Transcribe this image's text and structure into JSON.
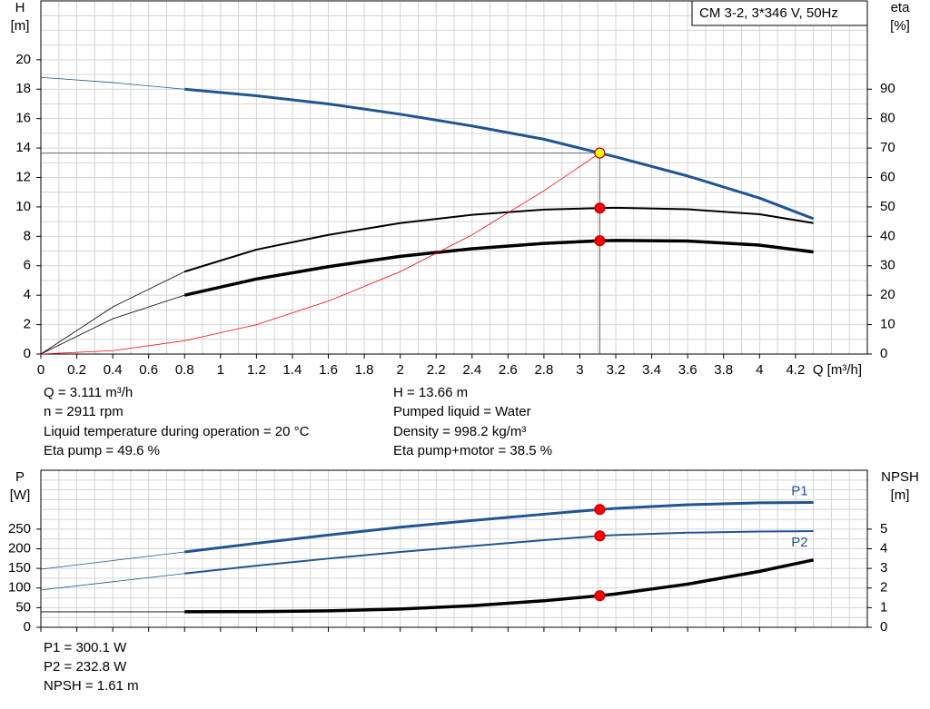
{
  "chart_data": [
    {
      "type": "line",
      "ylabel": "H",
      "yunit": "[m]",
      "y2label": "eta",
      "y2unit": "[%]",
      "xlabel": "Q [m³/h]",
      "legend_text": "CM 3-2, 3*346 V, 50Hz",
      "xlim": [
        0,
        4.6
      ],
      "xticks": [
        0,
        0.2,
        0.4,
        0.6,
        0.8,
        1.0,
        1.2,
        1.4,
        1.6,
        1.8,
        2.0,
        2.2,
        2.4,
        2.6,
        2.8,
        3.0,
        3.2,
        3.4,
        3.6,
        3.8,
        4.0,
        4.2
      ],
      "ylim": [
        0,
        24
      ],
      "yticks": [
        0,
        2,
        4,
        6,
        8,
        10,
        12,
        14,
        16,
        18,
        20
      ],
      "y2lim": [
        0,
        120
      ],
      "y2ticks": [
        0,
        10,
        20,
        30,
        40,
        50,
        60,
        70,
        80,
        90
      ],
      "minor_grid": {
        "x": 0.1,
        "y": 1
      },
      "thin_below": 0.8,
      "series": [
        {
          "color": "#1f5592",
          "width": 3,
          "x": [
            0,
            0.4,
            0.8,
            1.2,
            1.6,
            2.0,
            2.4,
            2.8,
            3.111,
            3.2,
            3.6,
            4.0,
            4.3
          ],
          "values": [
            18.8,
            18.45,
            18.0,
            17.55,
            17.0,
            16.3,
            15.5,
            14.6,
            13.66,
            13.4,
            12.1,
            10.6,
            9.2
          ]
        },
        {
          "color": "#000000",
          "width": 2,
          "axis": "y2",
          "x": [
            0,
            0.4,
            0.8,
            1.2,
            1.6,
            2.0,
            2.4,
            2.8,
            3.111,
            3.2,
            3.6,
            4.0,
            4.3
          ],
          "values": [
            0,
            16,
            28,
            35.5,
            40.5,
            44.5,
            47.3,
            49.1,
            49.6,
            49.7,
            49.2,
            47.5,
            44.5
          ]
        },
        {
          "color": "#000000",
          "width": 3.5,
          "axis": "y2",
          "x": [
            0,
            0.4,
            0.8,
            1.2,
            1.6,
            2.0,
            2.4,
            2.8,
            3.111,
            3.2,
            3.6,
            4.0,
            4.3
          ],
          "values": [
            0,
            12,
            20,
            25.5,
            29.7,
            33.2,
            35.8,
            37.6,
            38.5,
            38.6,
            38.4,
            37,
            34.7
          ]
        },
        {
          "color": "#ff0000",
          "width": 0.8,
          "thin": true,
          "x": [
            0,
            0.4,
            0.8,
            1.2,
            1.6,
            2.0,
            2.4,
            2.8,
            3.111
          ],
          "values": [
            0,
            0.23,
            0.9,
            2.0,
            3.6,
            5.6,
            8.1,
            11.1,
            13.66
          ]
        }
      ],
      "markers": [
        {
          "x": 3.111,
          "y": 13.66,
          "color": "#ffff00",
          "crosshair": true
        },
        {
          "x": 3.111,
          "y": 49.6,
          "axis": "y2",
          "color": "#ff0000"
        },
        {
          "x": 3.111,
          "y": 38.5,
          "axis": "y2",
          "color": "#ff0000"
        }
      ]
    },
    {
      "type": "line",
      "ylabel": "P",
      "yunit": "[W]",
      "y2label": "NPSH",
      "y2unit": "[m]",
      "xlim": [
        0,
        4.6
      ],
      "xticks": [
        0,
        0.2,
        0.4,
        0.6,
        0.8,
        1.0,
        1.2,
        1.4,
        1.6,
        1.8,
        2.0,
        2.2,
        2.4,
        2.6,
        2.8,
        3.0,
        3.2,
        3.4,
        3.6,
        3.8,
        4.0,
        4.2
      ],
      "ylim": [
        0,
        400
      ],
      "yticks": [
        0,
        50,
        100,
        150,
        200,
        250
      ],
      "y2lim": [
        0,
        8
      ],
      "y2ticks": [
        0,
        1,
        2,
        3,
        4,
        5
      ],
      "minor_grid": {
        "x": 0.1,
        "y": 25
      },
      "thin_below": 0.8,
      "series": [
        {
          "name": "P1",
          "color": "#1f5592",
          "width": 3,
          "x": [
            0,
            0.4,
            0.8,
            1.2,
            1.6,
            2.0,
            2.4,
            2.8,
            3.111,
            3.2,
            3.6,
            4.0,
            4.3
          ],
          "values": [
            148,
            170,
            192,
            214,
            235,
            255,
            272,
            288,
            300.1,
            303,
            312,
            317,
            318
          ]
        },
        {
          "name": "P2",
          "color": "#1f5592",
          "width": 2,
          "x": [
            0,
            0.4,
            0.8,
            1.2,
            1.6,
            2.0,
            2.4,
            2.8,
            3.111,
            3.2,
            3.6,
            4.0,
            4.3
          ],
          "values": [
            95,
            116,
            137,
            157,
            175,
            192,
            207,
            222,
            232.8,
            235,
            241,
            244,
            245
          ]
        },
        {
          "color": "#000000",
          "width": 3.5,
          "axis": "y2",
          "x": [
            0,
            0.4,
            0.8,
            1.2,
            1.6,
            2.0,
            2.4,
            2.8,
            3.111,
            3.2,
            3.6,
            4.0,
            4.3
          ],
          "values": [
            0.79,
            0.79,
            0.79,
            0.8,
            0.84,
            0.93,
            1.1,
            1.35,
            1.61,
            1.7,
            2.2,
            2.85,
            3.43
          ]
        }
      ],
      "markers": [
        {
          "x": 3.111,
          "y": 300.1,
          "color": "#ff0000"
        },
        {
          "x": 3.111,
          "y": 232.8,
          "color": "#ff0000"
        },
        {
          "x": 3.111,
          "y": 1.61,
          "axis": "y2",
          "color": "#ff0000"
        }
      ]
    }
  ],
  "info": {
    "left": [
      "Q = 3.111 m³/h",
      "n = 2911 rpm",
      "Liquid temperature during operation = 20 °C",
      "Eta pump = 49.6 %"
    ],
    "right": [
      "H = 13.66 m",
      "Pumped liquid = Water",
      "Density = 998.2 kg/m³",
      "Eta pump+motor = 38.5 %"
    ]
  },
  "info_bottom": [
    "P1 = 300.1 W",
    "P2 = 232.8 W",
    "NPSH = 1.61 m"
  ]
}
